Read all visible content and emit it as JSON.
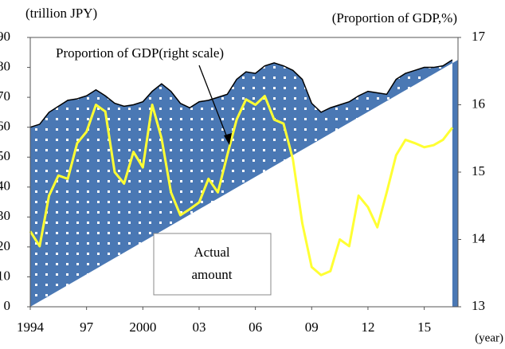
{
  "chart_data": {
    "type": "area_line",
    "y_axis_label": "(trillion JPY)",
    "y2_axis_label": "(Proportion of GDP,%)",
    "x_axis_label": "(year)",
    "annotation": "Proportion of GDP(right scale)",
    "box_label": [
      "Actual",
      "amount"
    ],
    "x": [
      1994,
      1994.5,
      1995,
      1995.5,
      1996,
      1996.5,
      1997,
      1997.5,
      1998,
      1998.5,
      1999,
      1999.5,
      2000,
      2000.5,
      2001,
      2001.5,
      2002,
      2002.5,
      2003,
      2003.5,
      2004,
      2004.5,
      2005,
      2005.5,
      2006,
      2006.5,
      2007,
      2007.5,
      2008,
      2008.5,
      2009,
      2009.5,
      2010,
      2010.5,
      2011,
      2011.5,
      2012,
      2012.5,
      2013,
      2013.5,
      2014,
      2014.5,
      2015,
      2015.5,
      2016,
      2016.5
    ],
    "series": [
      {
        "color": "#4a78b4",
        "kind": "area",
        "axis": "y",
        "values": [
          60,
          61,
          65,
          67,
          69,
          69.5,
          70.5,
          72.5,
          70.5,
          68,
          67,
          67.5,
          68.5,
          72,
          74.5,
          72,
          68,
          66.5,
          68.5,
          69,
          70,
          71,
          76,
          78.5,
          78,
          80.5,
          81.5,
          80.5,
          79,
          76,
          68,
          65,
          66.5,
          67.5,
          68.5,
          70.5,
          72,
          71.5,
          71,
          76,
          78,
          79,
          80,
          80,
          80.5,
          82.5
        ]
      },
      {
        "color": "#ffff33",
        "kind": "line",
        "axis": "y2",
        "values": [
          14.12,
          13.9,
          14.65,
          14.95,
          14.9,
          15.43,
          15.6,
          16.0,
          15.9,
          15.0,
          14.83,
          15.3,
          15.07,
          16.0,
          15.5,
          14.7,
          14.36,
          14.45,
          14.55,
          14.9,
          14.7,
          15.25,
          15.78,
          16.08,
          16.0,
          16.13,
          15.78,
          15.72,
          15.19,
          14.24,
          13.59,
          13.47,
          13.53,
          14.0,
          13.9,
          14.65,
          14.48,
          14.18,
          14.7,
          15.25,
          15.48,
          15.43,
          15.37,
          15.4,
          15.48,
          15.66
        ]
      }
    ],
    "xlim": [
      1994,
      2016.8
    ],
    "xticks": [
      1994,
      {
        "value": 1997,
        "label": "97"
      },
      2000,
      {
        "value": 2003,
        "label": "03"
      },
      {
        "value": 2006,
        "label": "06"
      },
      {
        "value": 2009,
        "label": "09"
      },
      {
        "value": 2012,
        "label": "12"
      },
      {
        "value": 2015,
        "label": "15"
      }
    ],
    "ylim": [
      0,
      90
    ],
    "yticks": [
      0,
      10,
      20,
      30,
      40,
      50,
      60,
      70,
      80,
      90
    ],
    "y2lim": [
      13,
      17
    ],
    "y2ticks": [
      13,
      14,
      15,
      16,
      17
    ]
  }
}
